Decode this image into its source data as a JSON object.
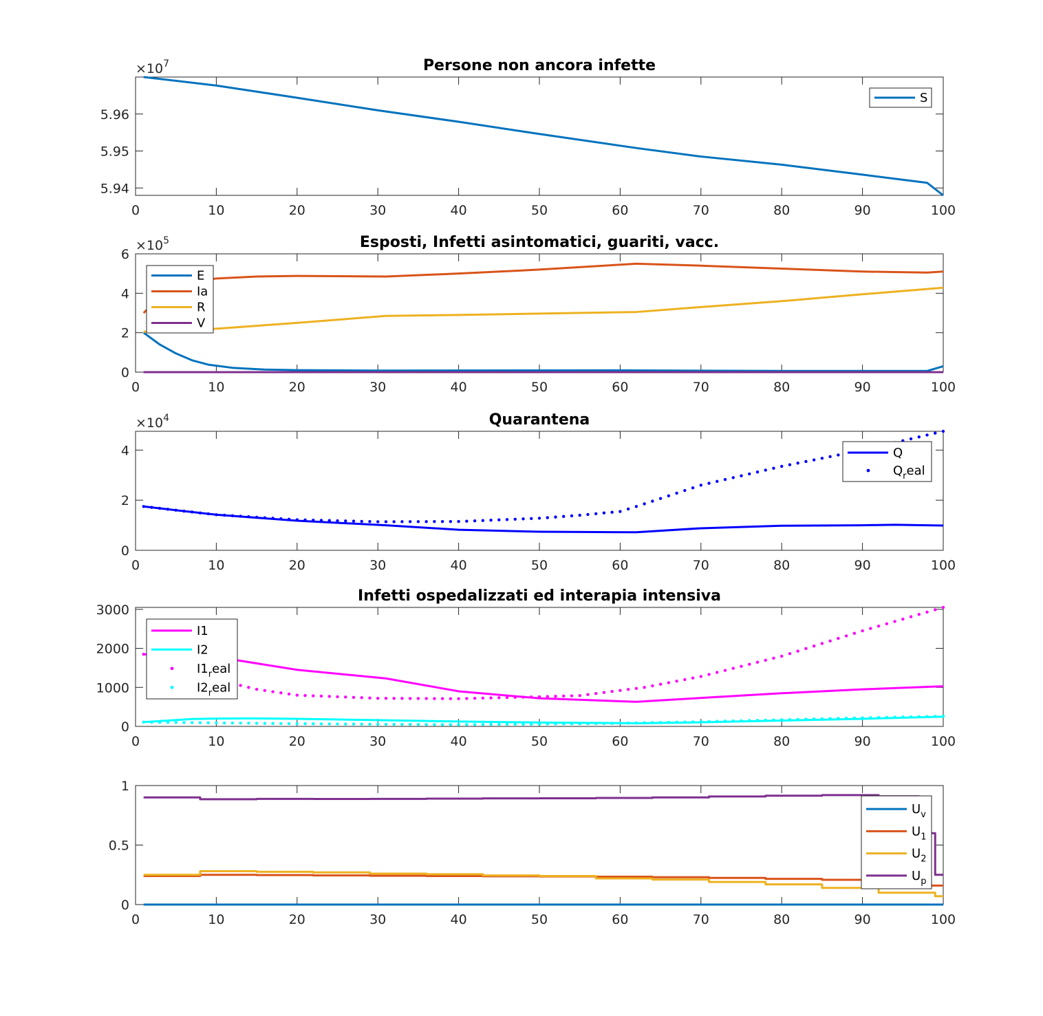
{
  "colors": {
    "matlab_blue": "#0072BD",
    "matlab_orange": "#D95319",
    "matlab_yellow": "#EDB120",
    "matlab_purple": "#7E2F8E",
    "blue": "#0000FF",
    "magenta": "#FF00FF",
    "cyan": "#00FFFF"
  },
  "chart_data": [
    {
      "type": "line",
      "title": "Persone non ancora infette",
      "exponent_label": {
        "base": "×10",
        "power": "7"
      },
      "scale": 10000000,
      "xlim": [
        0,
        100
      ],
      "ylim": [
        5.938,
        5.97
      ],
      "xticks": [
        0,
        10,
        20,
        30,
        40,
        50,
        60,
        70,
        80,
        90,
        100
      ],
      "yticks": [
        5.94,
        5.95,
        5.96
      ],
      "ytick_labels": [
        "5.94",
        "5.95",
        "5.96"
      ],
      "legend_position": "top-right",
      "series": [
        {
          "name": "S",
          "color": "#0072BD",
          "style": "line",
          "points": [
            [
              1,
              5.97
            ],
            [
              10,
              5.9677
            ],
            [
              20,
              5.9644
            ],
            [
              30,
              5.961
            ],
            [
              40,
              5.9579
            ],
            [
              50,
              5.9546
            ],
            [
              62,
              5.9508
            ],
            [
              70,
              5.9485
            ],
            [
              80,
              5.9463
            ],
            [
              90,
              5.9436
            ],
            [
              98,
              5.9414
            ],
            [
              100,
              5.938
            ]
          ]
        }
      ]
    },
    {
      "type": "line",
      "title": "Esposti, Infetti asintomatici, guariti, vacc.",
      "exponent_label": {
        "base": "×10",
        "power": "5"
      },
      "scale": 100000,
      "xlim": [
        0,
        100
      ],
      "ylim": [
        0,
        6
      ],
      "xticks": [
        0,
        10,
        20,
        30,
        40,
        50,
        60,
        70,
        80,
        90,
        100
      ],
      "yticks": [
        0,
        2,
        4,
        6
      ],
      "ytick_labels": [
        "0",
        "2",
        "4",
        "6"
      ],
      "legend_position": "top-left",
      "series": [
        {
          "name": "E",
          "color": "#0072BD",
          "style": "line",
          "points": [
            [
              1,
              2.0
            ],
            [
              3,
              1.4
            ],
            [
              5,
              0.95
            ],
            [
              7,
              0.6
            ],
            [
              9,
              0.38
            ],
            [
              12,
              0.22
            ],
            [
              16,
              0.13
            ],
            [
              20,
              0.1
            ],
            [
              30,
              0.08
            ],
            [
              60,
              0.09
            ],
            [
              80,
              0.06
            ],
            [
              98,
              0.06
            ],
            [
              100,
              0.3
            ]
          ]
        },
        {
          "name": "Ia",
          "color": "#D95319",
          "style": "line",
          "points": [
            [
              1,
              3.0
            ],
            [
              3,
              3.8
            ],
            [
              5,
              4.3
            ],
            [
              7,
              4.6
            ],
            [
              10,
              4.75
            ],
            [
              15,
              4.85
            ],
            [
              20,
              4.88
            ],
            [
              31,
              4.85
            ],
            [
              40,
              5.0
            ],
            [
              50,
              5.2
            ],
            [
              62,
              5.5
            ],
            [
              70,
              5.4
            ],
            [
              80,
              5.25
            ],
            [
              90,
              5.1
            ],
            [
              98,
              5.05
            ],
            [
              100,
              5.1
            ]
          ]
        },
        {
          "name": "R",
          "color": "#EDB120",
          "style": "line",
          "points": [
            [
              1,
              2.05
            ],
            [
              5,
              2.1
            ],
            [
              10,
              2.2
            ],
            [
              20,
              2.5
            ],
            [
              31,
              2.85
            ],
            [
              40,
              2.9
            ],
            [
              50,
              2.97
            ],
            [
              62,
              3.05
            ],
            [
              70,
              3.3
            ],
            [
              80,
              3.6
            ],
            [
              90,
              3.95
            ],
            [
              100,
              4.28
            ]
          ]
        },
        {
          "name": "V",
          "color": "#7E2F8E",
          "style": "line",
          "points": [
            [
              1,
              0.0
            ],
            [
              100,
              0.0
            ]
          ]
        }
      ]
    },
    {
      "type": "line",
      "title": "Quarantena",
      "exponent_label": {
        "base": "×10",
        "power": "4"
      },
      "scale": 10000,
      "xlim": [
        0,
        100
      ],
      "ylim": [
        0,
        4.75
      ],
      "xticks": [
        0,
        10,
        20,
        30,
        40,
        50,
        60,
        70,
        80,
        90,
        100
      ],
      "yticks": [
        0,
        2,
        4
      ],
      "ytick_labels": [
        "0",
        "2",
        "4"
      ],
      "legend_position": "top-right",
      "series": [
        {
          "name": "Q",
          "color": "#0000FF",
          "style": "line",
          "points": [
            [
              1,
              1.75
            ],
            [
              5,
              1.6
            ],
            [
              10,
              1.42
            ],
            [
              20,
              1.18
            ],
            [
              31,
              1.0
            ],
            [
              40,
              0.82
            ],
            [
              50,
              0.74
            ],
            [
              62,
              0.72
            ],
            [
              70,
              0.88
            ],
            [
              80,
              0.98
            ],
            [
              90,
              1.0
            ],
            [
              94,
              1.02
            ],
            [
              100,
              0.99
            ]
          ]
        },
        {
          "name": "Q_real",
          "legend_main": "Q",
          "legend_sub": "r",
          "legend_tail": "eal",
          "color": "#0000FF",
          "style": "dots",
          "points": [
            [
              1,
              1.75
            ],
            [
              5,
              1.6
            ],
            [
              10,
              1.42
            ],
            [
              20,
              1.22
            ],
            [
              30,
              1.14
            ],
            [
              40,
              1.15
            ],
            [
              50,
              1.28
            ],
            [
              55,
              1.4
            ],
            [
              60,
              1.55
            ],
            [
              62,
              1.75
            ],
            [
              70,
              2.6
            ],
            [
              80,
              3.35
            ],
            [
              90,
              4.0
            ],
            [
              100,
              4.75
            ]
          ]
        }
      ]
    },
    {
      "type": "line",
      "title": "Infetti ospedalizzati ed interapia intensiva",
      "xlim": [
        0,
        100
      ],
      "ylim": [
        0,
        3050
      ],
      "xticks": [
        0,
        10,
        20,
        30,
        40,
        50,
        60,
        70,
        80,
        90,
        100
      ],
      "yticks": [
        0,
        1000,
        2000,
        3000
      ],
      "ytick_labels": [
        "0",
        "1000",
        "2000",
        "3000"
      ],
      "legend_position": "top-left",
      "series": [
        {
          "name": "I1",
          "color": "#FF00FF",
          "style": "line",
          "points": [
            [
              1,
              1850
            ],
            [
              5,
              1820
            ],
            [
              10,
              1780
            ],
            [
              20,
              1450
            ],
            [
              31,
              1230
            ],
            [
              40,
              900
            ],
            [
              50,
              720
            ],
            [
              62,
              630
            ],
            [
              70,
              730
            ],
            [
              80,
              850
            ],
            [
              90,
              950
            ],
            [
              100,
              1030
            ]
          ]
        },
        {
          "name": "I2",
          "color": "#00FFFF",
          "style": "line",
          "points": [
            [
              1,
              110
            ],
            [
              4,
              150
            ],
            [
              7,
              190
            ],
            [
              10,
              200
            ],
            [
              14,
              205
            ],
            [
              20,
              195
            ],
            [
              30,
              160
            ],
            [
              40,
              125
            ],
            [
              50,
              100
            ],
            [
              62,
              80
            ],
            [
              70,
              105
            ],
            [
              80,
              150
            ],
            [
              90,
              195
            ],
            [
              100,
              250
            ]
          ]
        },
        {
          "name": "I1_real",
          "legend_main": "I1",
          "legend_sub": "r",
          "legend_tail": "eal",
          "color": "#FF00FF",
          "style": "dots",
          "points": [
            [
              1,
              1850
            ],
            [
              5,
              1600
            ],
            [
              10,
              1200
            ],
            [
              15,
              950
            ],
            [
              20,
              800
            ],
            [
              30,
              720
            ],
            [
              40,
              710
            ],
            [
              50,
              760
            ],
            [
              55,
              790
            ],
            [
              63,
              1000
            ],
            [
              70,
              1280
            ],
            [
              80,
              1800
            ],
            [
              90,
              2450
            ],
            [
              100,
              3050
            ]
          ]
        },
        {
          "name": "I2_real",
          "legend_main": "I2",
          "legend_sub": "r",
          "legend_tail": "eal",
          "color": "#00FFFF",
          "style": "dots",
          "points": [
            [
              1,
              110
            ],
            [
              10,
              90
            ],
            [
              20,
              70
            ],
            [
              30,
              55
            ],
            [
              40,
              45
            ],
            [
              50,
              60
            ],
            [
              60,
              80
            ],
            [
              70,
              120
            ],
            [
              80,
              170
            ],
            [
              90,
              220
            ],
            [
              100,
              260
            ]
          ]
        }
      ]
    },
    {
      "type": "line",
      "title": "",
      "xlim": [
        0,
        100
      ],
      "ylim": [
        0,
        1
      ],
      "xticks": [
        0,
        10,
        20,
        30,
        40,
        50,
        60,
        70,
        80,
        90,
        100
      ],
      "yticks": [
        0,
        0.5,
        1
      ],
      "ytick_labels": [
        "0",
        "0.5",
        "1"
      ],
      "legend_position": "top-right",
      "series": [
        {
          "name": "U_v",
          "legend_main": "U",
          "legend_sub": "v",
          "color": "#0072BD",
          "style": "step",
          "points": [
            [
              1,
              0.0
            ],
            [
              100,
              0.0
            ]
          ]
        },
        {
          "name": "U_1",
          "legend_main": "U",
          "legend_sub": "1",
          "color": "#D95319",
          "style": "step",
          "points": [
            [
              1,
              0.24
            ],
            [
              8,
              0.25
            ],
            [
              15,
              0.248
            ],
            [
              22,
              0.245
            ],
            [
              29,
              0.242
            ],
            [
              36,
              0.24
            ],
            [
              43,
              0.238
            ],
            [
              50,
              0.236
            ],
            [
              57,
              0.234
            ],
            [
              64,
              0.23
            ],
            [
              71,
              0.224
            ],
            [
              78,
              0.216
            ],
            [
              85,
              0.208
            ],
            [
              92,
              0.2
            ],
            [
              98,
              0.16
            ],
            [
              100,
              0.16
            ]
          ]
        },
        {
          "name": "U_2",
          "legend_main": "U",
          "legend_sub": "2",
          "color": "#EDB120",
          "style": "step",
          "points": [
            [
              1,
              0.25
            ],
            [
              8,
              0.28
            ],
            [
              15,
              0.275
            ],
            [
              22,
              0.27
            ],
            [
              29,
              0.26
            ],
            [
              36,
              0.255
            ],
            [
              43,
              0.245
            ],
            [
              50,
              0.24
            ],
            [
              57,
              0.22
            ],
            [
              64,
              0.21
            ],
            [
              71,
              0.19
            ],
            [
              78,
              0.17
            ],
            [
              85,
              0.14
            ],
            [
              92,
              0.1
            ],
            [
              99,
              0.07
            ],
            [
              100,
              0.07
            ]
          ]
        },
        {
          "name": "U_p",
          "legend_main": "U",
          "legend_sub": "p",
          "color": "#7E2F8E",
          "style": "step",
          "points": [
            [
              1,
              0.9
            ],
            [
              8,
              0.885
            ],
            [
              15,
              0.888
            ],
            [
              22,
              0.887
            ],
            [
              29,
              0.888
            ],
            [
              36,
              0.89
            ],
            [
              43,
              0.892
            ],
            [
              50,
              0.893
            ],
            [
              57,
              0.896
            ],
            [
              64,
              0.9
            ],
            [
              71,
              0.908
            ],
            [
              78,
              0.915
            ],
            [
              85,
              0.92
            ],
            [
              92,
              0.91
            ],
            [
              97,
              0.9
            ],
            [
              98,
              0.6
            ],
            [
              99,
              0.25
            ],
            [
              100,
              0.25
            ]
          ]
        }
      ]
    }
  ]
}
